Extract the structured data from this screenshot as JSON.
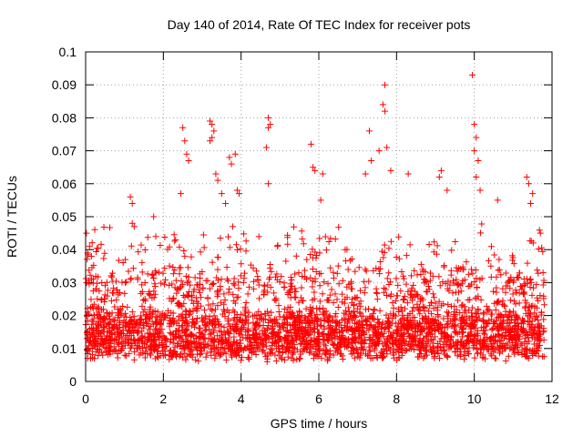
{
  "chart_data": {
    "type": "scatter",
    "title": "Day 140 of 2014, Rate Of TEC Index for receiver pots",
    "xlabel": "GPS time / hours",
    "ylabel": "ROTI / TECUs",
    "xlim": [
      0,
      12
    ],
    "ylim": [
      0,
      0.1
    ],
    "x_ticks": [
      0,
      2,
      4,
      6,
      8,
      10,
      12
    ],
    "x_tick_labels": [
      "0",
      "2",
      "4",
      "6",
      "8",
      "10",
      "12"
    ],
    "y_ticks": [
      0,
      0.01,
      0.02,
      0.03,
      0.04,
      0.05,
      0.06,
      0.07,
      0.08,
      0.09,
      0.1
    ],
    "y_tick_labels": [
      "0",
      "0.01",
      "0.02",
      "0.03",
      "0.04",
      "0.05",
      "0.06",
      "0.07",
      "0.08",
      "0.09",
      "0.1"
    ],
    "grid": true,
    "marker": "+",
    "marker_color": "#ff0000",
    "x_data_range": [
      0,
      11.8
    ],
    "series": [
      {
        "name": "ROTI",
        "points": [
          [
            0.02,
            0.045
          ],
          [
            0.05,
            0.039
          ],
          [
            0.1,
            0.041
          ],
          [
            0.15,
            0.038
          ],
          [
            1.15,
            0.056
          ],
          [
            1.2,
            0.054
          ],
          [
            1.2,
            0.048
          ],
          [
            1.25,
            0.047
          ],
          [
            1.75,
            0.05
          ],
          [
            2.45,
            0.057
          ],
          [
            2.5,
            0.077
          ],
          [
            2.55,
            0.073
          ],
          [
            2.6,
            0.069
          ],
          [
            2.65,
            0.067
          ],
          [
            3.2,
            0.079
          ],
          [
            3.25,
            0.078
          ],
          [
            3.3,
            0.076
          ],
          [
            3.25,
            0.074
          ],
          [
            3.2,
            0.073
          ],
          [
            3.35,
            0.063
          ],
          [
            3.4,
            0.061
          ],
          [
            3.5,
            0.057
          ],
          [
            3.6,
            0.054
          ],
          [
            3.7,
            0.068
          ],
          [
            3.75,
            0.066
          ],
          [
            3.85,
            0.069
          ],
          [
            3.9,
            0.058
          ],
          [
            3.95,
            0.057
          ],
          [
            4.7,
            0.08
          ],
          [
            4.75,
            0.078
          ],
          [
            4.7,
            0.077
          ],
          [
            4.65,
            0.071
          ],
          [
            4.7,
            0.06
          ],
          [
            5.8,
            0.072
          ],
          [
            5.85,
            0.065
          ],
          [
            5.9,
            0.064
          ],
          [
            6.1,
            0.063
          ],
          [
            6.05,
            0.055
          ],
          [
            7.2,
            0.063
          ],
          [
            7.3,
            0.076
          ],
          [
            7.35,
            0.067
          ],
          [
            7.55,
            0.07
          ],
          [
            7.65,
            0.084
          ],
          [
            7.7,
            0.082
          ],
          [
            7.7,
            0.09
          ],
          [
            7.75,
            0.071
          ],
          [
            7.85,
            0.064
          ],
          [
            8.3,
            0.063
          ],
          [
            9.15,
            0.064
          ],
          [
            9.1,
            0.062
          ],
          [
            9.3,
            0.058
          ],
          [
            9.95,
            0.093
          ],
          [
            10.0,
            0.078
          ],
          [
            10.05,
            0.074
          ],
          [
            10.0,
            0.07
          ],
          [
            10.1,
            0.067
          ],
          [
            10.05,
            0.062
          ],
          [
            10.15,
            0.058
          ],
          [
            10.6,
            0.055
          ],
          [
            11.35,
            0.062
          ],
          [
            11.4,
            0.06
          ],
          [
            11.5,
            0.057
          ],
          [
            11.45,
            0.054
          ],
          [
            11.7,
            0.045
          ]
        ]
      }
    ]
  }
}
